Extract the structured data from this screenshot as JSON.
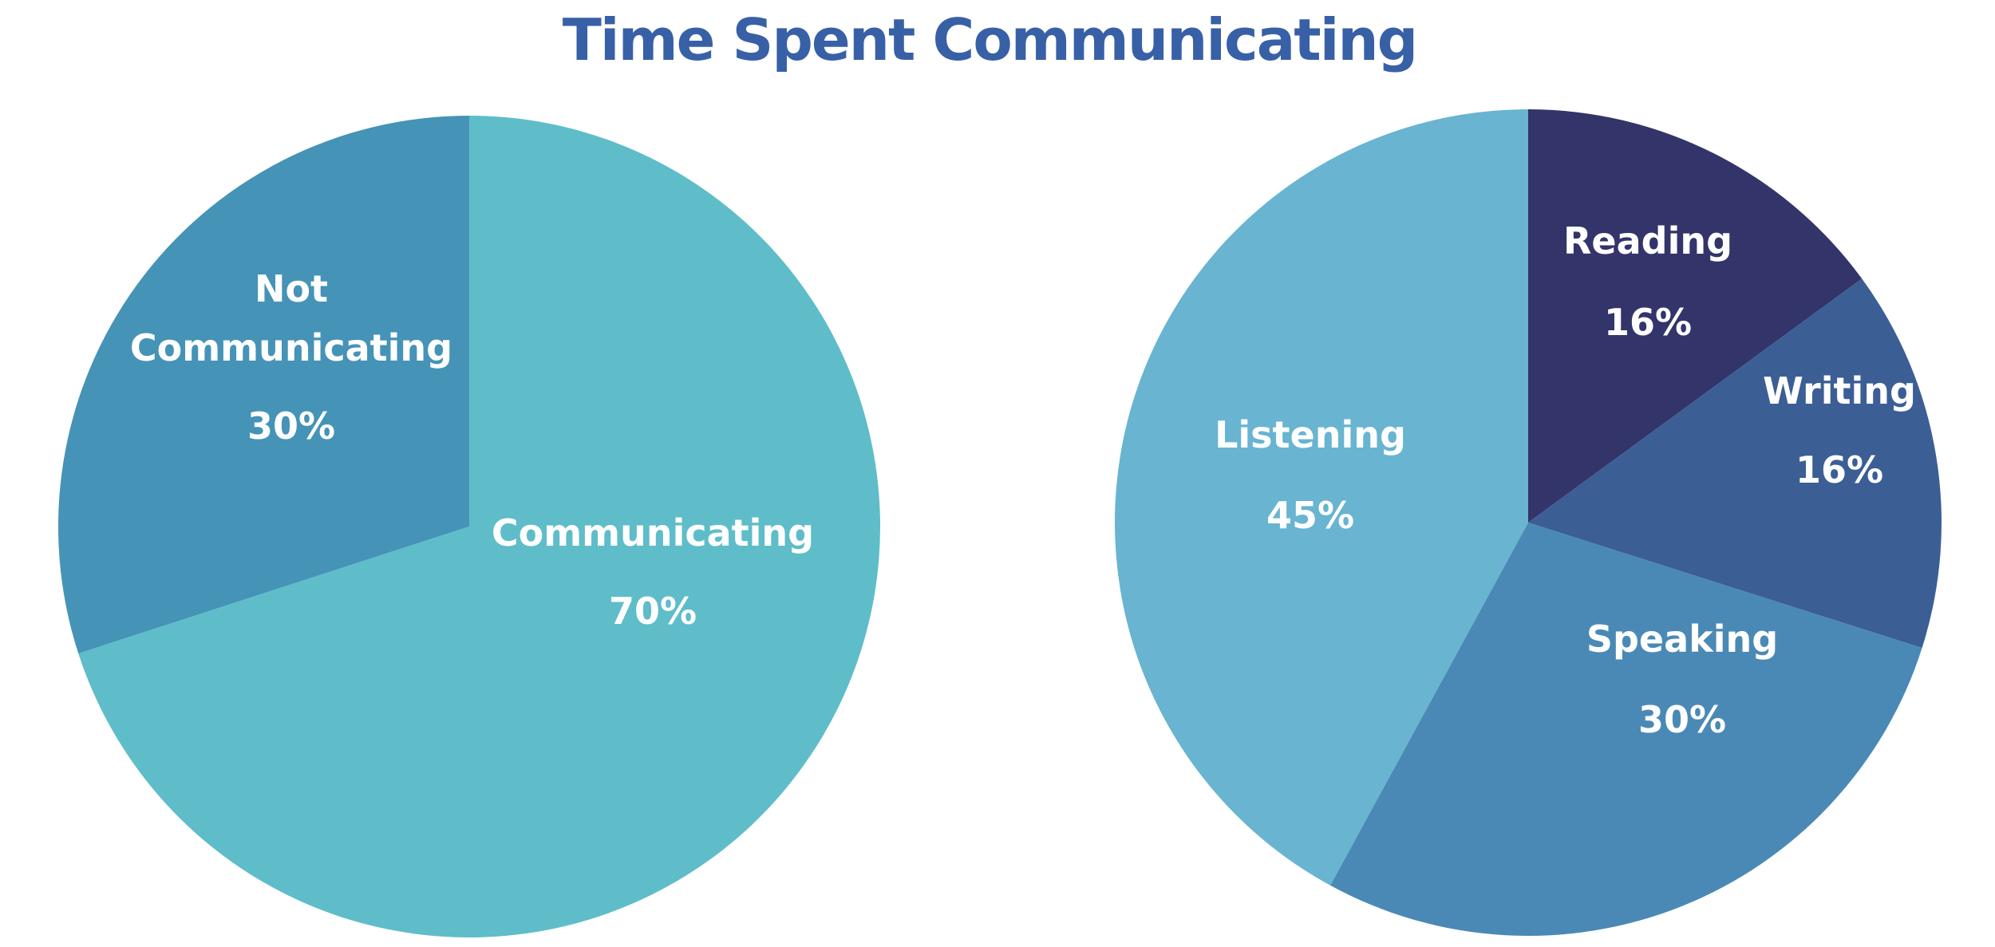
{
  "chart_data": [
    {
      "type": "pie",
      "title": "Time Spent Communicating",
      "slices": [
        {
          "label_lines": [
            "Not",
            "Communicating"
          ],
          "value_label": "30%",
          "value": 30,
          "color": "#4593b7"
        },
        {
          "label_lines": [
            "Communicating"
          ],
          "value_label": "70%",
          "value": 70,
          "color": "#5ebdc9"
        }
      ]
    },
    {
      "type": "pie",
      "slices": [
        {
          "label_lines": [
            "Reading"
          ],
          "value_label": "16%",
          "value": 16,
          "color": "#32346a"
        },
        {
          "label_lines": [
            "Writing"
          ],
          "value_label": "16%",
          "value": 16,
          "color": "#3b5e95"
        },
        {
          "label_lines": [
            "Speaking"
          ],
          "value_label": "30%",
          "value": 30,
          "color": "#4a89b5"
        },
        {
          "label_lines": [
            "Listening"
          ],
          "value_label": "45%",
          "value": 45,
          "color": "#68b4d1"
        }
      ]
    }
  ],
  "style": {
    "title_color": "#3860a6",
    "label_color": "#ffffff"
  }
}
